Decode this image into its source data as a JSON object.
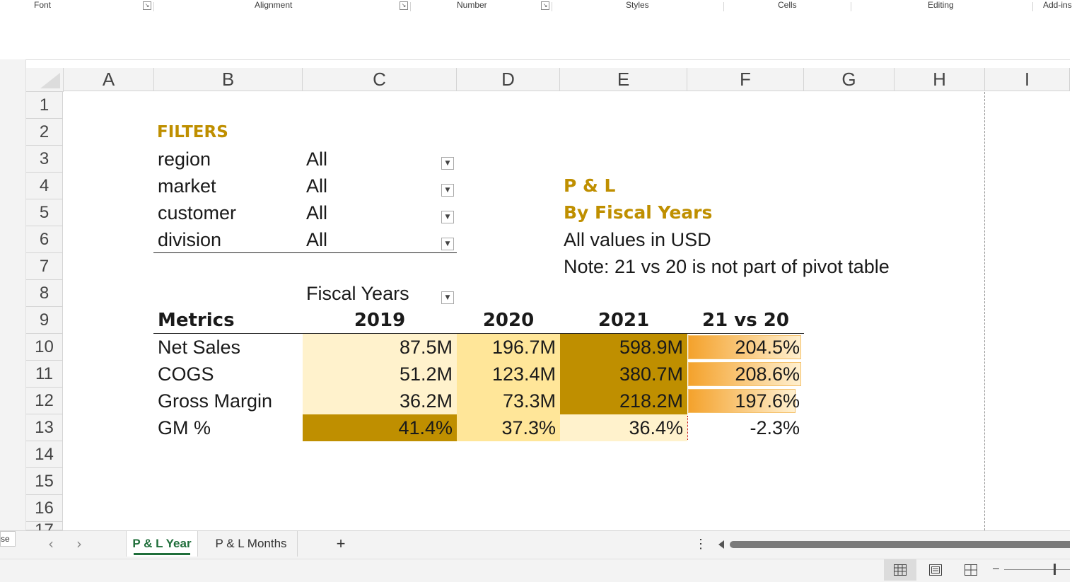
{
  "ribbon": {
    "groups": [
      "Font",
      "Alignment",
      "Number",
      "Styles",
      "Cells",
      "Editing",
      "Add-ins"
    ],
    "launcher_icon": "dialog-launcher-icon"
  },
  "columns": [
    "A",
    "B",
    "C",
    "D",
    "E",
    "F",
    "G",
    "H",
    "I"
  ],
  "rows": [
    "1",
    "2",
    "3",
    "4",
    "5",
    "6",
    "7",
    "8",
    "9",
    "10",
    "11",
    "12",
    "13",
    "14",
    "15",
    "16",
    "17"
  ],
  "filters": {
    "heading": "FILTERS",
    "items": [
      {
        "label": "region",
        "value": "All"
      },
      {
        "label": "market",
        "value": "All"
      },
      {
        "label": "customer",
        "value": "All"
      },
      {
        "label": "division",
        "value": "All"
      }
    ]
  },
  "report": {
    "title": "P & L",
    "subtitle": "By Fiscal Years",
    "units_note": "All values in USD",
    "note": "Note: 21 vs 20 is not part of pivot table"
  },
  "pivot": {
    "col_field": "Fiscal Years",
    "row_header": "Metrics",
    "years": [
      "2019",
      "2020",
      "2021"
    ],
    "diff_header": "21 vs 20",
    "rows": [
      {
        "metric": "Net Sales",
        "values": [
          "87.5M",
          "196.7M",
          "598.9M"
        ],
        "diff": "204.5%",
        "diff_fill": 1.0,
        "colors": [
          "#fff2cc",
          "#ffe699",
          "#bf8f00"
        ]
      },
      {
        "metric": "COGS",
        "values": [
          "51.2M",
          "123.4M",
          "380.7M"
        ],
        "diff": "208.6%",
        "diff_fill": 1.0,
        "colors": [
          "#fff2cc",
          "#ffe699",
          "#bf8f00"
        ]
      },
      {
        "metric": "Gross Margin",
        "values": [
          "36.2M",
          "73.3M",
          "218.2M"
        ],
        "diff": "197.6%",
        "diff_fill": 0.95,
        "colors": [
          "#fff2cc",
          "#ffe699",
          "#bf8f00"
        ]
      },
      {
        "metric": "GM %",
        "values": [
          "41.4%",
          "37.3%",
          "36.4%"
        ],
        "diff": "-2.3%",
        "diff_fill": 0,
        "colors": [
          "#bf8f00",
          "#ffe699",
          "#fff2cc"
        ]
      }
    ]
  },
  "tabs": {
    "prev_icon": "chevron-left-icon",
    "next_icon": "chevron-right-icon",
    "sheets": [
      "P & L Year",
      "P & L Months"
    ],
    "active": "P & L Year",
    "add_label": "+",
    "more_label": "⋮"
  },
  "left_edge_label": "se",
  "status": {
    "views": [
      "normal-view-icon",
      "page-layout-icon",
      "page-break-preview-icon"
    ],
    "zoom_out": "–"
  },
  "colors": {
    "gold": "#bf8f00",
    "light": "#fff2cc",
    "mid": "#ffe699",
    "bar_orange": "#f4b084"
  }
}
